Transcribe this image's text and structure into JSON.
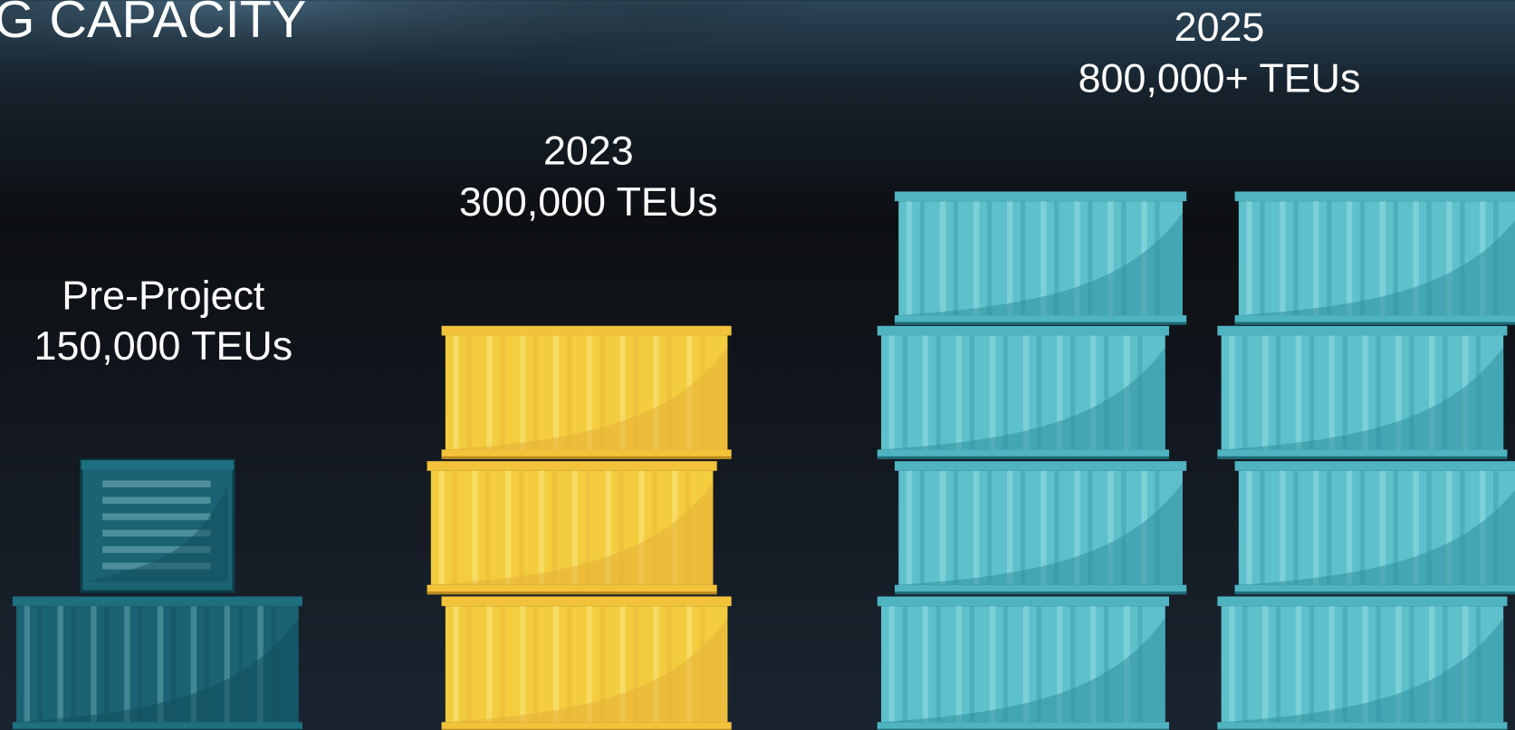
{
  "title": "G CAPACITY",
  "stages": [
    {
      "period": "Pre-Project",
      "capacity": "150,000 TEUs"
    },
    {
      "period": "2023",
      "capacity": "300,000 TEUs"
    },
    {
      "period": "2025",
      "capacity": "800,000+ TEUs"
    }
  ]
}
